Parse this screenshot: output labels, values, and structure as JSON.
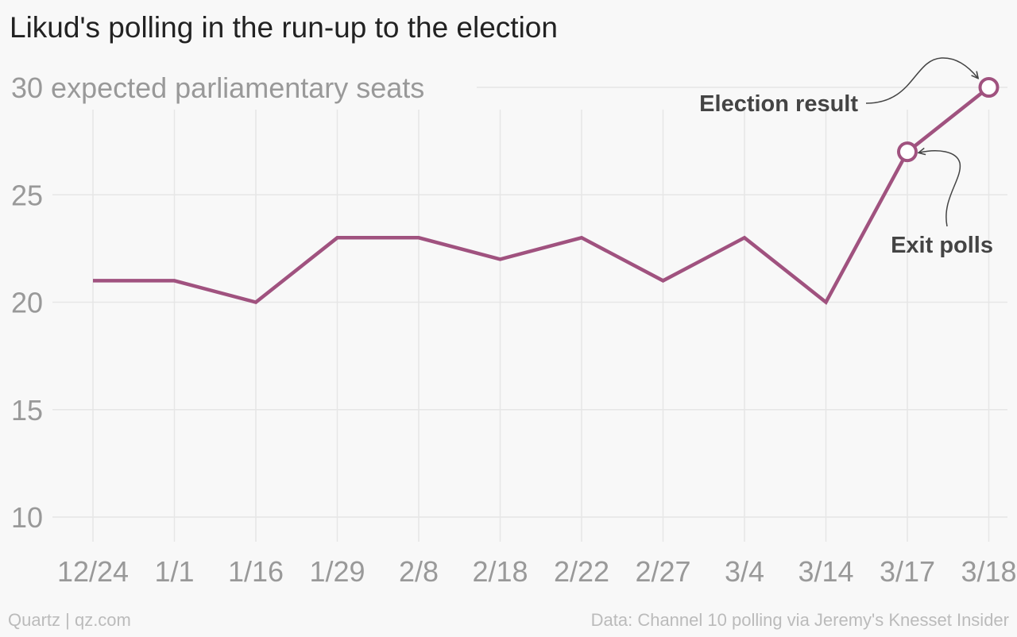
{
  "title": "Likud's polling in the run-up to the election",
  "footer": {
    "credit": "Quartz | qz.com",
    "source": "Data: Channel 10 polling via Jeremy's Knesset Insider"
  },
  "colors": {
    "line": "#a0527f",
    "grid": "#e6e6e6",
    "background": "#f8f8f8"
  },
  "chart_data": {
    "type": "line",
    "title": "Likud's polling in the run-up to the election",
    "ylabel": "expected parliamentary seats",
    "y_top_label": "30 expected parliamentary seats",
    "categories": [
      "12/24",
      "1/1",
      "1/16",
      "1/29",
      "2/8",
      "2/18",
      "2/22",
      "2/27",
      "3/4",
      "3/14",
      "3/17",
      "3/18"
    ],
    "series": [
      {
        "values": [
          21,
          21,
          20,
          23,
          23,
          22,
          23,
          21,
          23,
          20,
          27,
          30
        ]
      }
    ],
    "ylim": [
      10,
      30
    ],
    "yticks": [
      10,
      15,
      20,
      25,
      30
    ],
    "grid": true,
    "annotations": [
      {
        "text": "Election result",
        "category": "3/18",
        "value": 30
      },
      {
        "text": "Exit polls",
        "category": "3/17",
        "value": 27
      }
    ]
  }
}
